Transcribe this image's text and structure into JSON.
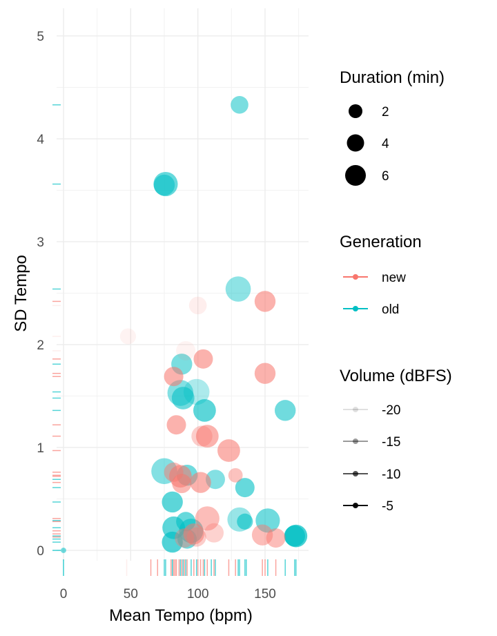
{
  "chart_data": {
    "type": "scatter",
    "xlabel": "Mean Tempo (bpm)",
    "ylabel": "SD Tempo",
    "xlim": [
      -5,
      180
    ],
    "ylim": [
      -0.1,
      5.2
    ],
    "x_ticks": [
      0,
      50,
      100,
      150
    ],
    "y_ticks": [
      0,
      1,
      2,
      3,
      4,
      5
    ],
    "grid": true,
    "legend_position": "right",
    "colors": {
      "new": "#F8766D",
      "old": "#00BFC4"
    },
    "legends": {
      "size": {
        "title": "Duration (min)",
        "entries": [
          {
            "label": "2",
            "value": 2
          },
          {
            "label": "4",
            "value": 4
          },
          {
            "label": "6",
            "value": 6
          }
        ]
      },
      "color": {
        "title": "Generation",
        "entries": [
          {
            "label": "new",
            "group": "new"
          },
          {
            "label": "old",
            "group": "old"
          }
        ]
      },
      "alpha": {
        "title": "Volume (dBFS)",
        "entries": [
          {
            "label": "-20",
            "value": -20
          },
          {
            "label": "-15",
            "value": -15
          },
          {
            "label": "-10",
            "value": -10
          },
          {
            "label": "-5",
            "value": -5
          }
        ]
      }
    },
    "series": [
      {
        "name": "old",
        "points": [
          {
            "x": 131,
            "y": 4.33,
            "duration": 4.5,
            "volume": -9
          },
          {
            "x": 76,
            "y": 3.56,
            "duration": 6.5,
            "volume": -7
          },
          {
            "x": 75,
            "y": 3.55,
            "duration": 5.5,
            "volume": -8
          },
          {
            "x": 130,
            "y": 2.54,
            "duration": 6.8,
            "volume": -11
          },
          {
            "x": 88,
            "y": 1.81,
            "duration": 5.5,
            "volume": -9
          },
          {
            "x": 87,
            "y": 1.53,
            "duration": 7.0,
            "volume": -10
          },
          {
            "x": 99,
            "y": 1.54,
            "duration": 7.0,
            "volume": -14
          },
          {
            "x": 89,
            "y": 1.48,
            "duration": 6.0,
            "volume": -8
          },
          {
            "x": 105,
            "y": 1.36,
            "duration": 6.0,
            "volume": -6
          },
          {
            "x": 165,
            "y": 1.36,
            "duration": 5.5,
            "volume": -8
          },
          {
            "x": 75,
            "y": 0.77,
            "duration": 7.0,
            "volume": -10
          },
          {
            "x": 92,
            "y": 0.73,
            "duration": 5.5,
            "volume": -8
          },
          {
            "x": 113,
            "y": 0.69,
            "duration": 5.0,
            "volume": -10
          },
          {
            "x": 135,
            "y": 0.61,
            "duration": 5.0,
            "volume": -7
          },
          {
            "x": 81,
            "y": 0.47,
            "duration": 5.5,
            "volume": -6
          },
          {
            "x": 131,
            "y": 0.3,
            "duration": 6.5,
            "volume": -12
          },
          {
            "x": 152,
            "y": 0.29,
            "duration": 6.5,
            "volume": -8
          },
          {
            "x": 91,
            "y": 0.28,
            "duration": 5.0,
            "volume": -7
          },
          {
            "x": 135,
            "y": 0.28,
            "duration": 4.0,
            "volume": -7
          },
          {
            "x": 82,
            "y": 0.22,
            "duration": 6.0,
            "volume": -6
          },
          {
            "x": 95,
            "y": 0.19,
            "duration": 6.5,
            "volume": -7
          },
          {
            "x": 173,
            "y": 0.14,
            "duration": 6.0,
            "volume": -4
          },
          {
            "x": 172,
            "y": 0.14,
            "duration": 5.5,
            "volume": -4
          },
          {
            "x": 81,
            "y": 0.08,
            "duration": 5.5,
            "volume": -5
          },
          {
            "x": 92,
            "y": 0.11,
            "duration": 5.0,
            "volume": -8
          },
          {
            "x": 0,
            "y": 0.0,
            "duration": 0.8,
            "volume": -8
          }
        ]
      },
      {
        "name": "new",
        "points": [
          {
            "x": 150,
            "y": 2.42,
            "duration": 5.5,
            "volume": -8
          },
          {
            "x": 100,
            "y": 2.38,
            "duration": 4.5,
            "volume": -19
          },
          {
            "x": 48,
            "y": 2.08,
            "duration": 4.0,
            "volume": -20
          },
          {
            "x": 91,
            "y": 1.94,
            "duration": 5.0,
            "volume": -20
          },
          {
            "x": 104,
            "y": 1.86,
            "duration": 5.0,
            "volume": -8
          },
          {
            "x": 82,
            "y": 1.69,
            "duration": 5.0,
            "volume": -8
          },
          {
            "x": 150,
            "y": 1.72,
            "duration": 5.5,
            "volume": -8
          },
          {
            "x": 84,
            "y": 1.22,
            "duration": 5.0,
            "volume": -8
          },
          {
            "x": 103,
            "y": 1.11,
            "duration": 5.5,
            "volume": -13
          },
          {
            "x": 107,
            "y": 1.11,
            "duration": 6.0,
            "volume": -8
          },
          {
            "x": 123,
            "y": 0.97,
            "duration": 6.0,
            "volume": -8
          },
          {
            "x": 82,
            "y": 0.76,
            "duration": 5.0,
            "volume": -10
          },
          {
            "x": 87,
            "y": 0.72,
            "duration": 6.0,
            "volume": -8
          },
          {
            "x": 128,
            "y": 0.73,
            "duration": 3.5,
            "volume": -11
          },
          {
            "x": 88,
            "y": 0.65,
            "duration": 5.0,
            "volume": -9
          },
          {
            "x": 102,
            "y": 0.66,
            "duration": 5.5,
            "volume": -8
          },
          {
            "x": 107,
            "y": 0.31,
            "duration": 6.5,
            "volume": -10
          },
          {
            "x": 97,
            "y": 0.16,
            "duration": 5.5,
            "volume": -9
          },
          {
            "x": 112,
            "y": 0.17,
            "duration": 5.0,
            "volume": -14
          },
          {
            "x": 148,
            "y": 0.15,
            "duration": 5.5,
            "volume": -10
          },
          {
            "x": 158,
            "y": 0.12,
            "duration": 5.0,
            "volume": -10
          },
          {
            "x": 99,
            "y": 0.13,
            "duration": 5.0,
            "volume": -13
          },
          {
            "x": 90,
            "y": 0.12,
            "duration": 5.0,
            "volume": -12
          }
        ]
      }
    ],
    "rugs": {
      "x": [
        {
          "v": 47,
          "g": "new",
          "volume": -20
        },
        {
          "v": 65,
          "g": "new",
          "volume": -10
        },
        {
          "v": 70,
          "g": "new",
          "volume": -10
        },
        {
          "v": 75,
          "g": "old",
          "volume": -10
        },
        {
          "v": 76,
          "g": "old",
          "volume": -10
        },
        {
          "v": 80,
          "g": "new",
          "volume": -10
        },
        {
          "v": 81,
          "g": "old",
          "volume": -8
        },
        {
          "v": 82,
          "g": "new",
          "volume": -10
        },
        {
          "v": 83,
          "g": "new",
          "volume": -10
        },
        {
          "v": 84,
          "g": "new",
          "volume": -10
        },
        {
          "v": 86,
          "g": "new",
          "volume": -10
        },
        {
          "v": 87,
          "g": "old",
          "volume": -10
        },
        {
          "v": 88,
          "g": "new",
          "volume": -10
        },
        {
          "v": 89,
          "g": "old",
          "volume": -10
        },
        {
          "v": 90,
          "g": "new",
          "volume": -10
        },
        {
          "v": 91,
          "g": "old",
          "volume": -10
        },
        {
          "v": 92,
          "g": "new",
          "volume": -10
        },
        {
          "v": 95,
          "g": "old",
          "volume": -10
        },
        {
          "v": 97,
          "g": "new",
          "volume": -10
        },
        {
          "v": 99,
          "g": "old",
          "volume": -10
        },
        {
          "v": 100,
          "g": "new",
          "volume": -10
        },
        {
          "v": 102,
          "g": "new",
          "volume": -10
        },
        {
          "v": 104,
          "g": "new",
          "volume": -10
        },
        {
          "v": 105,
          "g": "old",
          "volume": -10
        },
        {
          "v": 107,
          "g": "new",
          "volume": -10
        },
        {
          "v": 110,
          "g": "old",
          "volume": -10
        },
        {
          "v": 112,
          "g": "new",
          "volume": -10
        },
        {
          "v": 113,
          "g": "old",
          "volume": -10
        },
        {
          "v": 123,
          "g": "new",
          "volume": -10
        },
        {
          "v": 128,
          "g": "new",
          "volume": -10
        },
        {
          "v": 130,
          "g": "old",
          "volume": -10
        },
        {
          "v": 131,
          "g": "old",
          "volume": -10
        },
        {
          "v": 135,
          "g": "old",
          "volume": -10
        },
        {
          "v": 136,
          "g": "old",
          "volume": -10
        },
        {
          "v": 148,
          "g": "new",
          "volume": -10
        },
        {
          "v": 150,
          "g": "new",
          "volume": -10
        },
        {
          "v": 152,
          "g": "old",
          "volume": -10
        },
        {
          "v": 158,
          "g": "new",
          "volume": -10
        },
        {
          "v": 165,
          "g": "old",
          "volume": -10
        },
        {
          "v": 172,
          "g": "old",
          "volume": -10
        },
        {
          "v": 173,
          "g": "old",
          "volume": -10
        },
        {
          "v": 0,
          "g": "old",
          "volume": -8
        }
      ],
      "y": [
        {
          "v": 4.33,
          "g": "old",
          "volume": -10
        },
        {
          "v": 3.56,
          "g": "old",
          "volume": -10
        },
        {
          "v": 2.54,
          "g": "old",
          "volume": -10
        },
        {
          "v": 2.42,
          "g": "new",
          "volume": -10
        },
        {
          "v": 2.38,
          "g": "new",
          "volume": -20
        },
        {
          "v": 2.08,
          "g": "new",
          "volume": -20
        },
        {
          "v": 1.94,
          "g": "new",
          "volume": -20
        },
        {
          "v": 1.86,
          "g": "new",
          "volume": -10
        },
        {
          "v": 1.81,
          "g": "old",
          "volume": -10
        },
        {
          "v": 1.72,
          "g": "new",
          "volume": -10
        },
        {
          "v": 1.69,
          "g": "new",
          "volume": -10
        },
        {
          "v": 1.54,
          "g": "old",
          "volume": -10
        },
        {
          "v": 1.48,
          "g": "old",
          "volume": -10
        },
        {
          "v": 1.36,
          "g": "old",
          "volume": -10
        },
        {
          "v": 1.22,
          "g": "new",
          "volume": -10
        },
        {
          "v": 1.11,
          "g": "new",
          "volume": -10
        },
        {
          "v": 0.97,
          "g": "new",
          "volume": -10
        },
        {
          "v": 0.76,
          "g": "new",
          "volume": -10
        },
        {
          "v": 0.73,
          "g": "new",
          "volume": -10
        },
        {
          "v": 0.72,
          "g": "new",
          "volume": -10
        },
        {
          "v": 0.69,
          "g": "old",
          "volume": -10
        },
        {
          "v": 0.66,
          "g": "new",
          "volume": -10
        },
        {
          "v": 0.61,
          "g": "old",
          "volume": -10
        },
        {
          "v": 0.47,
          "g": "old",
          "volume": -10
        },
        {
          "v": 0.31,
          "g": "new",
          "volume": -10
        },
        {
          "v": 0.29,
          "g": "old",
          "volume": -10
        },
        {
          "v": 0.28,
          "g": "new",
          "volume": -10
        },
        {
          "v": 0.22,
          "g": "old",
          "volume": -10
        },
        {
          "v": 0.19,
          "g": "new",
          "volume": -10
        },
        {
          "v": 0.16,
          "g": "new",
          "volume": -10
        },
        {
          "v": 0.14,
          "g": "old",
          "volume": -10
        },
        {
          "v": 0.13,
          "g": "new",
          "volume": -10
        },
        {
          "v": 0.11,
          "g": "old",
          "volume": -10
        },
        {
          "v": 0.08,
          "g": "old",
          "volume": -10
        },
        {
          "v": 0.0,
          "g": "old",
          "volume": -8
        }
      ]
    }
  }
}
